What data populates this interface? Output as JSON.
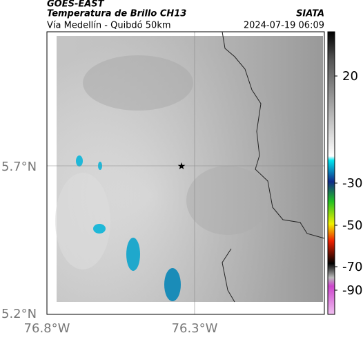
{
  "header": {
    "source": "GOES-EAST",
    "title": "Temperatura de Brillo CH13",
    "organization": "SIATA",
    "subtitle": "Vía Medellín - Quibdó 50km",
    "timestamp": "2024-07-19 06:09"
  },
  "map": {
    "lat_labels": [
      "5.7°N",
      "5.2°N"
    ],
    "lon_labels": [
      "76.8°W",
      "76.3°W"
    ]
  },
  "colorbar": {
    "ticks": [
      20,
      -30,
      -50,
      -70,
      -90
    ]
  }
}
